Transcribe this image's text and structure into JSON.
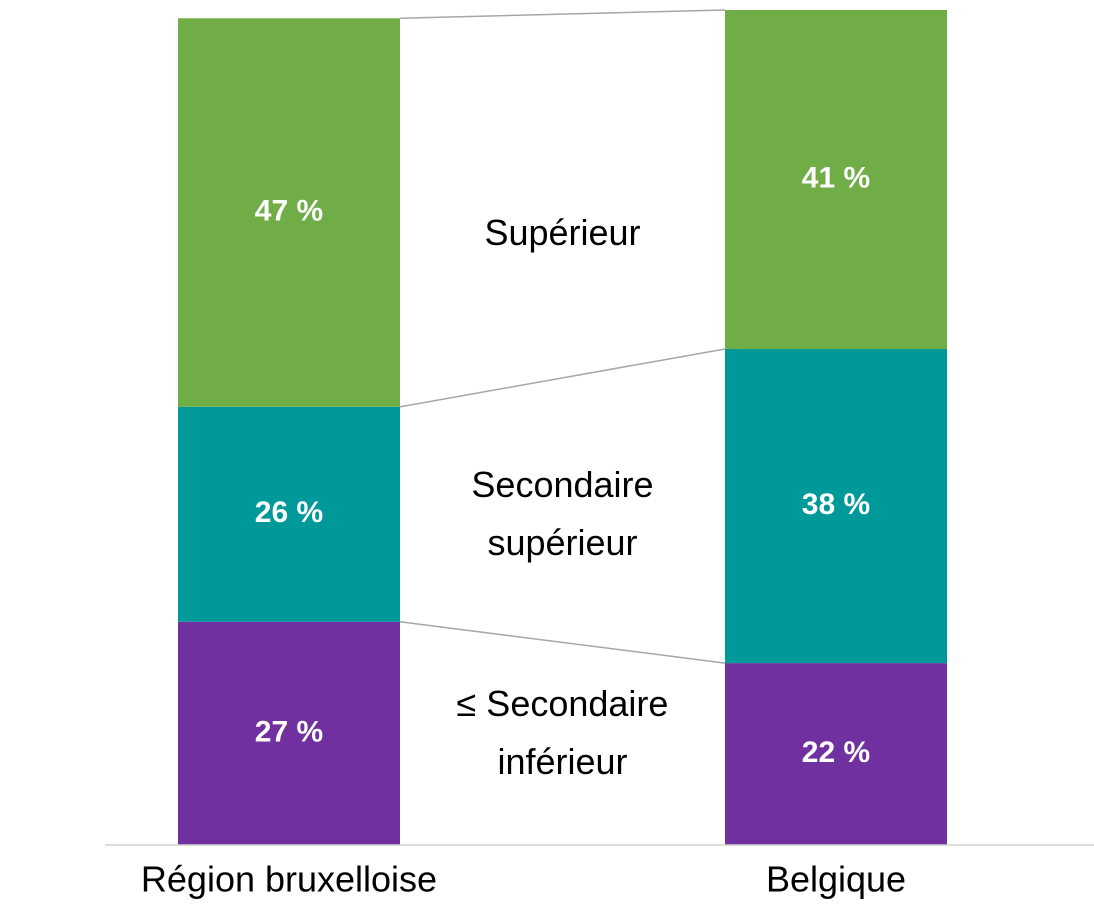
{
  "chart_data": {
    "type": "stacked_bar",
    "categories": [
      "Région bruxelloise",
      "Belgique"
    ],
    "series": [
      {
        "name": "≤ Secondaire inférieur",
        "color": "#7030a0",
        "values": [
          27,
          22
        ],
        "value_labels": [
          "27 %",
          "22 %"
        ]
      },
      {
        "name": "Secondaire supérieur",
        "color": "#009999",
        "values": [
          26,
          38
        ],
        "value_labels": [
          "26 %",
          "38 %"
        ]
      },
      {
        "name": "Supérieur",
        "color": "#70ad47",
        "values": [
          47,
          41
        ],
        "value_labels": [
          "47 %",
          "41 %"
        ]
      }
    ],
    "ylim": [
      0,
      101
    ]
  }
}
